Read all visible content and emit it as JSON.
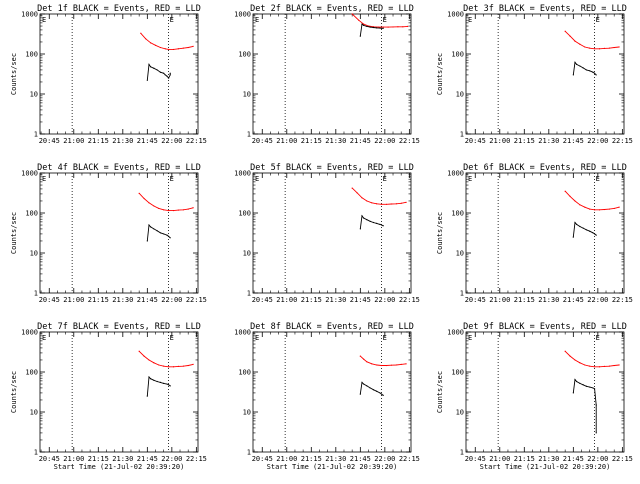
{
  "chart_data": [
    {
      "type": "line",
      "title": "Det 1f BLACK = Events, RED = LLD",
      "xlabel": "",
      "ylabel": "Counts/sec",
      "log_y": true,
      "ylim": [
        1,
        1000
      ],
      "x_ticks": [
        "20:45",
        "21:00",
        "21:15",
        "21:30",
        "21:45",
        "22:00",
        "22:15"
      ],
      "y_ticks": [
        "1",
        "10",
        "100",
        "1000"
      ],
      "marker_label": "E",
      "marker_time": "21:58",
      "dotted_time": "20:59",
      "series": [
        {
          "color": "#ff0000",
          "t": [
            "21:41",
            "21:44",
            "21:47",
            "21:50",
            "21:53",
            "21:56",
            "21:58",
            "22:01",
            "22:04",
            "22:07",
            "22:10",
            "22:13"
          ],
          "y": [
            330,
            240,
            190,
            165,
            145,
            135,
            130,
            130,
            135,
            140,
            145,
            155
          ]
        },
        {
          "color": "#000000",
          "t": [
            "21:45",
            "21:46",
            "21:47",
            "21:49",
            "21:51",
            "21:53",
            "21:55",
            "21:56",
            "21:57",
            "21:58",
            "21:59",
            "21:59"
          ],
          "y": [
            22,
            55,
            48,
            44,
            40,
            35,
            33,
            30,
            28,
            25,
            30,
            33
          ]
        }
      ]
    },
    {
      "type": "line",
      "title": "Det 2f BLACK = Events, RED = LLD",
      "xlabel": "",
      "ylabel": "",
      "log_y": true,
      "ylim": [
        1,
        1000
      ],
      "x_ticks": [
        "20:45",
        "21:00",
        "21:15",
        "21:30",
        "21:45",
        "22:00",
        "22:15"
      ],
      "y_ticks": [
        "1",
        "10",
        "100",
        "1000"
      ],
      "marker_label": "E",
      "marker_time": "21:58",
      "dotted_time": "20:59",
      "series": [
        {
          "color": "#ff0000",
          "t": [
            "21:40",
            "21:44",
            "21:47",
            "21:50",
            "21:53",
            "21:56",
            "21:59",
            "22:02",
            "22:05",
            "22:08",
            "22:11",
            "22:14"
          ],
          "y": [
            1000,
            700,
            560,
            500,
            480,
            470,
            470,
            470,
            475,
            480,
            480,
            490
          ]
        },
        {
          "color": "#000000",
          "t": [
            "21:45",
            "21:46",
            "21:47",
            "21:49",
            "21:51",
            "21:53",
            "21:55",
            "21:57",
            "21:58",
            "21:59"
          ],
          "y": [
            280,
            560,
            520,
            490,
            470,
            460,
            450,
            445,
            440,
            440
          ]
        }
      ]
    },
    {
      "type": "line",
      "title": "Det 3f BLACK = Events, RED = LLD",
      "xlabel": "",
      "ylabel": "Counts/sec",
      "log_y": true,
      "ylim": [
        1,
        1000
      ],
      "x_ticks": [
        "20:45",
        "21:00",
        "21:15",
        "21:30",
        "21:45",
        "22:00",
        "22:15"
      ],
      "y_ticks": [
        "1",
        "10",
        "100",
        "1000"
      ],
      "marker_label": "E",
      "marker_time": "21:58",
      "dotted_time": "20:59",
      "series": [
        {
          "color": "#ff0000",
          "t": [
            "21:40",
            "21:43",
            "21:46",
            "21:49",
            "21:52",
            "21:55",
            "21:58",
            "22:01",
            "22:04",
            "22:07",
            "22:10",
            "22:13"
          ],
          "y": [
            370,
            280,
            210,
            175,
            150,
            140,
            135,
            135,
            138,
            140,
            145,
            150
          ]
        },
        {
          "color": "#000000",
          "t": [
            "21:45",
            "21:46",
            "21:47",
            "21:49",
            "21:51",
            "21:53",
            "21:55",
            "21:57",
            "21:58",
            "21:59"
          ],
          "y": [
            30,
            62,
            55,
            50,
            45,
            40,
            38,
            35,
            33,
            30
          ]
        }
      ]
    },
    {
      "type": "line",
      "title": "Det 4f BLACK = Events, RED = LLD",
      "xlabel": "",
      "ylabel": "Counts/sec",
      "log_y": true,
      "ylim": [
        1,
        1000
      ],
      "x_ticks": [
        "20:45",
        "21:00",
        "21:15",
        "21:30",
        "21:45",
        "22:00",
        "22:15"
      ],
      "y_ticks": [
        "1",
        "10",
        "100",
        "1000"
      ],
      "marker_label": "E",
      "marker_time": "21:58",
      "dotted_time": "20:59",
      "series": [
        {
          "color": "#ff0000",
          "t": [
            "21:40",
            "21:43",
            "21:46",
            "21:49",
            "21:52",
            "21:55",
            "21:58",
            "22:01",
            "22:04",
            "22:07",
            "22:10",
            "22:13"
          ],
          "y": [
            310,
            230,
            180,
            150,
            130,
            120,
            115,
            115,
            118,
            120,
            125,
            135
          ]
        },
        {
          "color": "#000000",
          "t": [
            "21:45",
            "21:46",
            "21:47",
            "21:49",
            "21:51",
            "21:53",
            "21:55",
            "21:57",
            "21:58",
            "21:59"
          ],
          "y": [
            20,
            50,
            45,
            40,
            36,
            32,
            30,
            28,
            26,
            24
          ]
        }
      ]
    },
    {
      "type": "line",
      "title": "Det 5f BLACK = Events, RED = LLD",
      "xlabel": "",
      "ylabel": "",
      "log_y": true,
      "ylim": [
        1,
        1000
      ],
      "x_ticks": [
        "20:45",
        "21:00",
        "21:15",
        "21:30",
        "21:45",
        "22:00",
        "22:15"
      ],
      "y_ticks": [
        "1",
        "10",
        "100",
        "1000"
      ],
      "marker_label": "E",
      "marker_time": "21:58",
      "dotted_time": "20:59",
      "series": [
        {
          "color": "#ff0000",
          "t": [
            "21:40",
            "21:43",
            "21:46",
            "21:49",
            "21:52",
            "21:55",
            "21:58",
            "22:01",
            "22:04",
            "22:07",
            "22:10",
            "22:13"
          ],
          "y": [
            420,
            320,
            240,
            200,
            180,
            170,
            165,
            165,
            168,
            170,
            175,
            185
          ]
        },
        {
          "color": "#000000",
          "t": [
            "21:45",
            "21:46",
            "21:47",
            "21:49",
            "21:51",
            "21:53",
            "21:55",
            "21:57",
            "21:58",
            "21:59"
          ],
          "y": [
            40,
            85,
            75,
            68,
            62,
            58,
            55,
            52,
            50,
            48
          ]
        }
      ]
    },
    {
      "type": "line",
      "title": "Det 6f BLACK = Events, RED = LLD",
      "xlabel": "",
      "ylabel": "Counts/sec",
      "log_y": true,
      "ylim": [
        1,
        1000
      ],
      "x_ticks": [
        "20:45",
        "21:00",
        "21:15",
        "21:30",
        "21:45",
        "22:00",
        "22:15"
      ],
      "y_ticks": [
        "1",
        "10",
        "100",
        "1000"
      ],
      "marker_label": "E",
      "marker_time": "21:58",
      "dotted_time": "20:59",
      "series": [
        {
          "color": "#ff0000",
          "t": [
            "21:40",
            "21:43",
            "21:46",
            "21:49",
            "21:52",
            "21:55",
            "21:58",
            "22:01",
            "22:04",
            "22:07",
            "22:10",
            "22:13"
          ],
          "y": [
            350,
            260,
            200,
            160,
            140,
            125,
            120,
            120,
            122,
            125,
            130,
            140
          ]
        },
        {
          "color": "#000000",
          "t": [
            "21:45",
            "21:46",
            "21:47",
            "21:49",
            "21:51",
            "21:53",
            "21:55",
            "21:57",
            "21:58",
            "21:59"
          ],
          "y": [
            25,
            58,
            52,
            46,
            42,
            38,
            35,
            32,
            30,
            28
          ]
        }
      ]
    },
    {
      "type": "line",
      "title": "Det 7f BLACK = Events, RED = LLD",
      "xlabel": "Start Time (21-Jul-02 20:39:20)",
      "ylabel": "Counts/sec",
      "log_y": true,
      "ylim": [
        1,
        1000
      ],
      "x_ticks": [
        "20:45",
        "21:00",
        "21:15",
        "21:30",
        "21:45",
        "22:00",
        "22:15"
      ],
      "y_ticks": [
        "1",
        "10",
        "100",
        "1000"
      ],
      "marker_label": "E",
      "marker_time": "21:58",
      "dotted_time": "20:59",
      "series": [
        {
          "color": "#ff0000",
          "t": [
            "21:40",
            "21:43",
            "21:46",
            "21:49",
            "21:52",
            "21:55",
            "21:58",
            "22:01",
            "22:04",
            "22:07",
            "22:10",
            "22:13"
          ],
          "y": [
            330,
            250,
            200,
            170,
            150,
            140,
            135,
            135,
            138,
            140,
            145,
            155
          ]
        },
        {
          "color": "#000000",
          "t": [
            "21:45",
            "21:46",
            "21:47",
            "21:49",
            "21:51",
            "21:53",
            "21:55",
            "21:57",
            "21:58",
            "21:59"
          ],
          "y": [
            25,
            75,
            68,
            62,
            58,
            55,
            52,
            50,
            48,
            45
          ]
        }
      ]
    },
    {
      "type": "line",
      "title": "Det 8f BLACK = Events, RED = LLD",
      "xlabel": "Start Time (21-Jul-02 20:39:20)",
      "ylabel": "",
      "log_y": true,
      "ylim": [
        1,
        1000
      ],
      "x_ticks": [
        "20:45",
        "21:00",
        "21:15",
        "21:30",
        "21:45",
        "22:00",
        "22:15"
      ],
      "y_ticks": [
        "1",
        "10",
        "100",
        "1000"
      ],
      "marker_label": "E",
      "marker_time": "21:58",
      "dotted_time": "20:59",
      "series": [
        {
          "color": "#ff0000",
          "t": [
            "21:45",
            "21:47",
            "21:49",
            "21:52",
            "21:55",
            "21:58",
            "22:01",
            "22:04",
            "22:07",
            "22:10",
            "22:13"
          ],
          "y": [
            250,
            210,
            180,
            160,
            150,
            145,
            145,
            148,
            150,
            155,
            160
          ]
        },
        {
          "color": "#000000",
          "t": [
            "21:45",
            "21:46",
            "21:47",
            "21:49",
            "21:51",
            "21:53",
            "21:55",
            "21:57",
            "21:58",
            "21:59"
          ],
          "y": [
            28,
            55,
            50,
            45,
            40,
            36,
            33,
            30,
            28,
            26
          ]
        }
      ]
    },
    {
      "type": "line",
      "title": "Det 9f BLACK = Events, RED = LLD",
      "xlabel": "Start Time (21-Jul-02 20:39:20)",
      "ylabel": "Counts/sec",
      "log_y": true,
      "ylim": [
        1,
        1000
      ],
      "x_ticks": [
        "20:45",
        "21:00",
        "21:15",
        "21:30",
        "21:45",
        "22:00",
        "22:15"
      ],
      "y_ticks": [
        "1",
        "10",
        "100",
        "1000"
      ],
      "marker_label": "E",
      "marker_time": "21:58",
      "dotted_time": "20:59",
      "series": [
        {
          "color": "#ff0000",
          "t": [
            "21:40",
            "21:43",
            "21:46",
            "21:49",
            "21:52",
            "21:55",
            "21:58",
            "22:01",
            "22:04",
            "22:07",
            "22:10",
            "22:13"
          ],
          "y": [
            330,
            250,
            200,
            170,
            150,
            140,
            135,
            135,
            138,
            140,
            145,
            150
          ]
        },
        {
          "color": "#000000",
          "t": [
            "21:45",
            "21:46",
            "21:47",
            "21:49",
            "21:51",
            "21:53",
            "21:55",
            "21:57",
            "21:58",
            "21:59",
            "21:59"
          ],
          "y": [
            30,
            65,
            58,
            52,
            48,
            44,
            42,
            40,
            38,
            15,
            3
          ]
        }
      ]
    }
  ]
}
